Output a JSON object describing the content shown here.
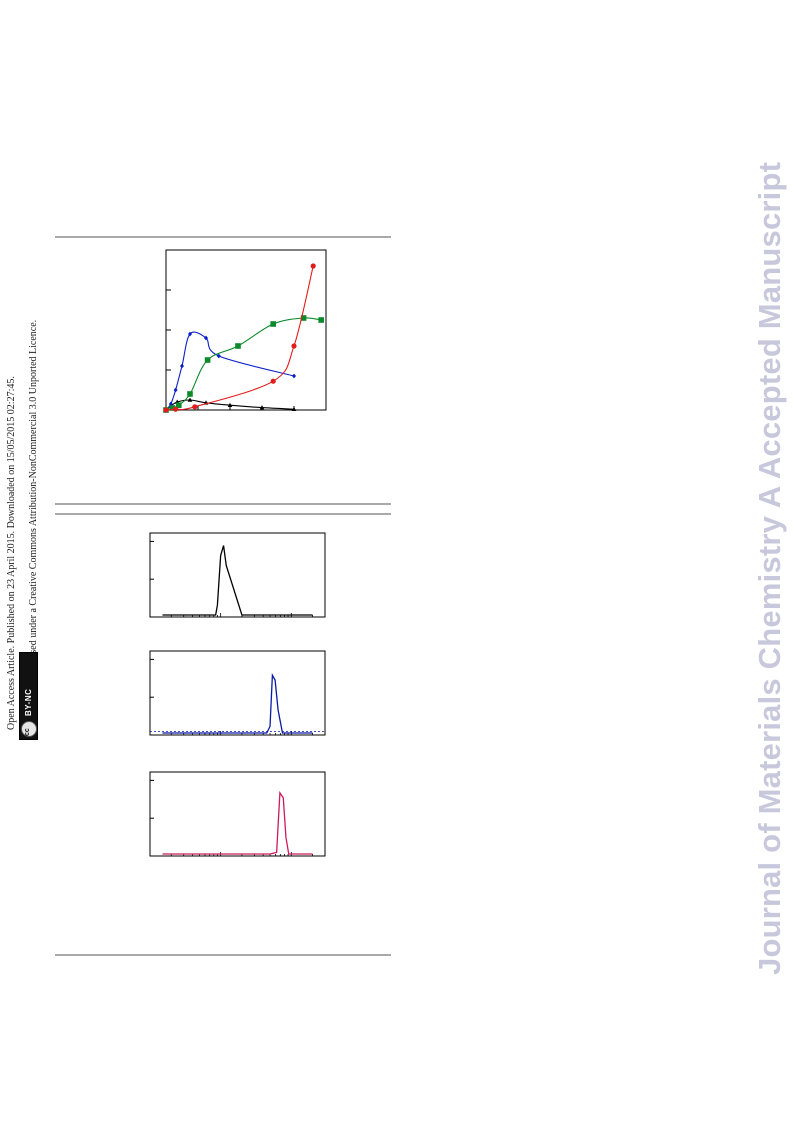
{
  "sidebar": {
    "line1": "Open Access Article. Published on 23 April 2015. Downloaded on 15/05/2015 02:27:45.",
    "line2": "This article is licensed under a Creative Commons Attribution-NonCommercial 3.0 Unported Licence.",
    "badge_text": "BY-NC",
    "badge_symbol": "cc"
  },
  "watermark": "Journal of Materials Chemistry A Accepted Manuscript",
  "colors": {
    "black": "#000000",
    "blue": "#0b1fc8",
    "green": "#0a8a2a",
    "red": "#e11c1c",
    "navy": "#0a1aa6",
    "magenta": "#cc1a5a",
    "rule": "#a9a9a9",
    "watermark": "#c7c8dc"
  },
  "chart_data": [
    {
      "type": "scatter",
      "xlim": [
        0,
        10
      ],
      "ylim": [
        0,
        4
      ],
      "grid": false,
      "series": [
        {
          "color": "black",
          "marker": "triangle",
          "points": [
            [
              0,
              0
            ],
            [
              0.3,
              0.1
            ],
            [
              0.7,
              0.2
            ],
            [
              1.5,
              0.25
            ],
            [
              2.5,
              0.18
            ],
            [
              4,
              0.12
            ],
            [
              6,
              0.06
            ],
            [
              8,
              0.02
            ]
          ]
        },
        {
          "color": "blue",
          "marker": "diamond",
          "points": [
            [
              0,
              0
            ],
            [
              0.3,
              0.15
            ],
            [
              0.6,
              0.5
            ],
            [
              1.0,
              1.1
            ],
            [
              1.5,
              1.9
            ],
            [
              2.5,
              1.8
            ],
            [
              3.3,
              1.35
            ],
            [
              8,
              0.85
            ]
          ]
        },
        {
          "color": "green",
          "marker": "square",
          "points": [
            [
              0,
              0
            ],
            [
              0.4,
              0.05
            ],
            [
              0.8,
              0.12
            ],
            [
              1.5,
              0.4
            ],
            [
              2.6,
              1.25
            ],
            [
              4.5,
              1.6
            ],
            [
              6.7,
              2.15
            ],
            [
              8.6,
              2.3
            ],
            [
              9.7,
              2.25
            ]
          ]
        },
        {
          "color": "red",
          "marker": "circle",
          "points": [
            [
              0,
              0
            ],
            [
              0.6,
              0.02
            ],
            [
              1.8,
              0.08
            ],
            [
              6.7,
              0.72
            ],
            [
              8.0,
              1.6
            ],
            [
              9.2,
              3.6
            ]
          ]
        }
      ]
    },
    {
      "type": "line",
      "scale_x": "log",
      "series": [
        {
          "color": "black",
          "x": [
            0.15,
            0.5,
            0.85,
            0.9,
            1.0,
            1.1,
            1.2,
            2,
            5,
            20
          ],
          "y": [
            0,
            0,
            0,
            0.3,
            1.8,
            2.1,
            1.5,
            0,
            0,
            0
          ]
        }
      ]
    },
    {
      "type": "line",
      "scale_x": "log",
      "series": [
        {
          "color": "navy",
          "x": [
            0.15,
            0.5,
            2,
            4.5,
            5.0,
            5.4,
            5.9,
            6.5,
            7.5,
            20
          ],
          "y": [
            0,
            0,
            0,
            0,
            0.2,
            1.75,
            1.6,
            0.7,
            0,
            0
          ]
        }
      ]
    },
    {
      "type": "line",
      "scale_x": "log",
      "series": [
        {
          "color": "magenta",
          "x": [
            0.15,
            0.5,
            2,
            5,
            6.2,
            6.9,
            7.7,
            8.4,
            9.2,
            20
          ],
          "y": [
            0,
            0,
            0,
            0,
            0.05,
            1.85,
            1.7,
            0.5,
            0,
            0
          ]
        }
      ]
    }
  ]
}
